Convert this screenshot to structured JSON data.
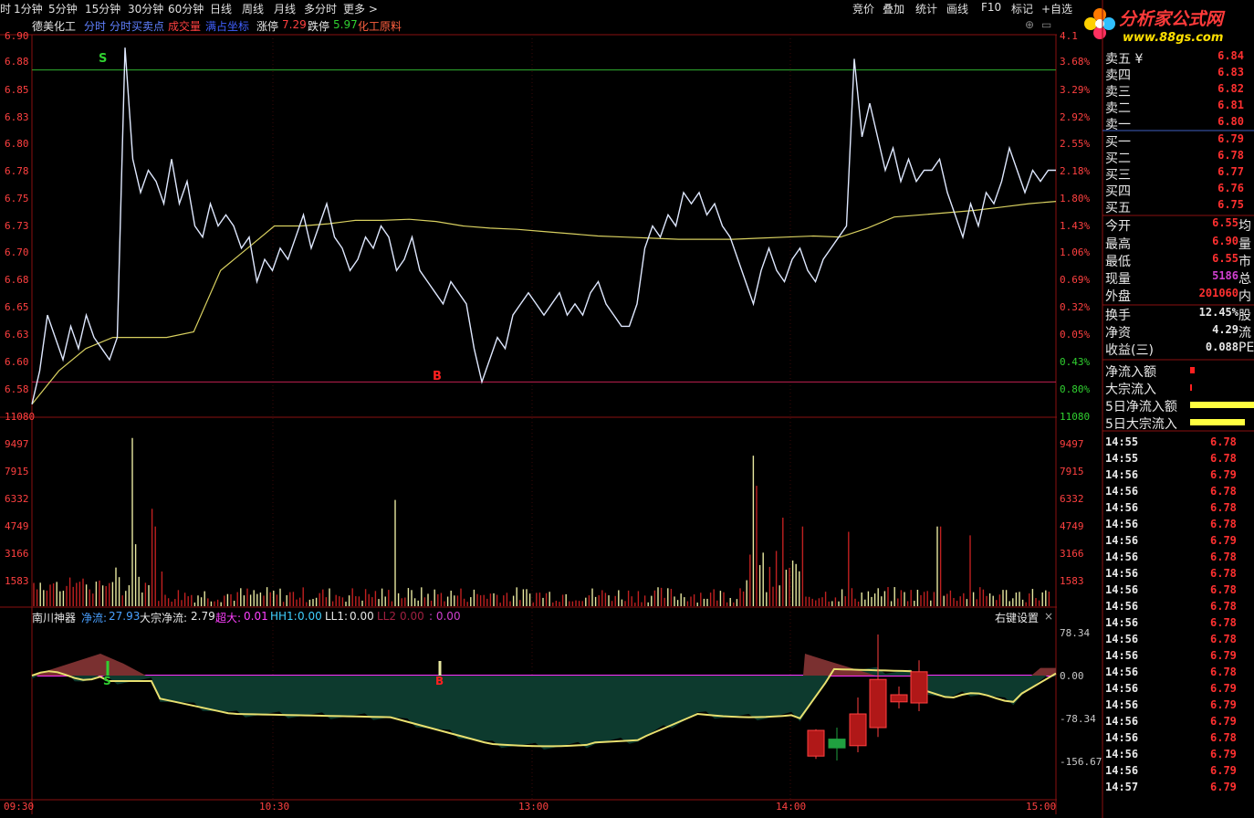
{
  "topbar": {
    "periods": [
      "1分钟",
      "5分钟",
      "15分钟",
      "30分钟",
      "60分钟",
      "日线",
      "周线",
      "月线",
      "多分时",
      "更多 >"
    ],
    "right_tools": [
      "竞价",
      "叠加",
      "统计",
      "画线",
      "F10",
      "标记",
      "+自选"
    ],
    "leading_char": "时"
  },
  "logo": {
    "text": "分析家公式网",
    "url": "www.88gs.com"
  },
  "chart_header": {
    "stock_name": "德美化工",
    "items": [
      "分时",
      "分时买卖点",
      "成交量",
      "满占坐标"
    ],
    "limit_up_label": "涨停",
    "limit_up": "7.29",
    "limit_down_label": "跌停",
    "limit_down": "5.97",
    "sector": "化工原料"
  },
  "price_axis": {
    "left": [
      "6.90",
      "6.88",
      "6.85",
      "6.83",
      "6.80",
      "6.78",
      "6.75",
      "6.73",
      "6.70",
      "6.68",
      "6.65",
      "6.63",
      "6.60",
      "6.58"
    ],
    "right": [
      "4.1",
      "3.68%",
      "3.29%",
      "2.92%",
      "2.55%",
      "2.18%",
      "1.80%",
      "1.43%",
      "1.06%",
      "0.69%",
      "0.32%",
      "0.05%",
      "0.43%",
      "0.80%"
    ]
  },
  "volume_axis": [
    "11080",
    "9497",
    "7915",
    "6332",
    "4749",
    "3166",
    "1583"
  ],
  "time_axis": [
    "09:30",
    "10:30",
    "13:00",
    "14:00",
    "15:00"
  ],
  "indicator": {
    "name": "南川神器",
    "jl_label": "净流:",
    "jl": "27.93",
    "dz_label": "大宗净流:",
    "dz": "2.79",
    "cd_label": "超大:",
    "cd": "0.01",
    "hh_label": "HH1:",
    "hh": "0.00",
    "ll1_label": "LL1:",
    "ll1": "0.00",
    "ll2_label": "LL2",
    "ll2": "0.00",
    "extra": ": 0.00",
    "settings": "右键设置",
    "close": "×",
    "axis": [
      "78.34",
      "0.00",
      "-78.34",
      "-156.67"
    ]
  },
  "orderbook": {
    "sell": [
      {
        "label": "卖五 ¥",
        "price": "6.84"
      },
      {
        "label": "卖四",
        "price": "6.83"
      },
      {
        "label": "卖三",
        "price": "6.82"
      },
      {
        "label": "卖二",
        "price": "6.81"
      },
      {
        "label": "卖一",
        "price": "6.80"
      }
    ],
    "buy": [
      {
        "label": "买一",
        "price": "6.79"
      },
      {
        "label": "买二",
        "price": "6.78"
      },
      {
        "label": "买三",
        "price": "6.77"
      },
      {
        "label": "买四",
        "price": "6.76"
      },
      {
        "label": "买五",
        "price": "6.75"
      }
    ]
  },
  "stats": [
    {
      "label": "今开",
      "value": "6.55",
      "ext": "均",
      "color": "#ff3030"
    },
    {
      "label": "最高",
      "value": "6.90",
      "ext": "量",
      "color": "#ff3030"
    },
    {
      "label": "最低",
      "value": "6.55",
      "ext": "市",
      "color": "#ff3030"
    },
    {
      "label": "现量",
      "value": "5186",
      "ext": "总",
      "color": "#d040d0"
    },
    {
      "label": "外盘",
      "value": "201060",
      "ext": "内",
      "color": "#ff3030"
    },
    {
      "label": "换手",
      "value": "12.45%",
      "ext": "股",
      "color": "#e8e8e8"
    },
    {
      "label": "净资",
      "value": "4.29",
      "ext": "流",
      "color": "#e8e8e8"
    },
    {
      "label": "收益(三)",
      "value": "0.088",
      "ext": "PE",
      "color": "#e8e8e8"
    }
  ],
  "flows": [
    {
      "label": "净流入额"
    },
    {
      "label": "大宗流入"
    },
    {
      "label": "5日净流入额"
    },
    {
      "label": "5日大宗流入"
    }
  ],
  "ticks": [
    {
      "time": "14:55",
      "price": "6.78"
    },
    {
      "time": "14:55",
      "price": "6.78"
    },
    {
      "time": "14:56",
      "price": "6.79"
    },
    {
      "time": "14:56",
      "price": "6.78"
    },
    {
      "time": "14:56",
      "price": "6.78"
    },
    {
      "time": "14:56",
      "price": "6.78"
    },
    {
      "time": "14:56",
      "price": "6.79"
    },
    {
      "time": "14:56",
      "price": "6.78"
    },
    {
      "time": "14:56",
      "price": "6.78"
    },
    {
      "time": "14:56",
      "price": "6.78"
    },
    {
      "time": "14:56",
      "price": "6.78"
    },
    {
      "time": "14:56",
      "price": "6.78"
    },
    {
      "time": "14:56",
      "price": "6.78"
    },
    {
      "time": "14:56",
      "price": "6.79"
    },
    {
      "time": "14:56",
      "price": "6.78"
    },
    {
      "time": "14:56",
      "price": "6.79"
    },
    {
      "time": "14:56",
      "price": "6.79"
    },
    {
      "time": "14:56",
      "price": "6.79"
    },
    {
      "time": "14:56",
      "price": "6.78"
    },
    {
      "time": "14:56",
      "price": "6.79"
    },
    {
      "time": "14:56",
      "price": "6.79"
    },
    {
      "time": "14:57",
      "price": "6.79"
    }
  ],
  "markers": {
    "sell": "S",
    "buy": "B",
    "ind_sell": "S",
    "ind_buy": "B"
  },
  "chart_data": {
    "type": "line",
    "price_series": [
      6.58,
      6.61,
      6.66,
      6.64,
      6.62,
      6.65,
      6.63,
      6.66,
      6.64,
      6.63,
      6.62,
      6.64,
      6.9,
      6.8,
      6.77,
      6.79,
      6.78,
      6.76,
      6.8,
      6.76,
      6.78,
      6.74,
      6.73,
      6.76,
      6.74,
      6.75,
      6.74,
      6.72,
      6.73,
      6.69,
      6.71,
      6.7,
      6.72,
      6.71,
      6.73,
      6.75,
      6.72,
      6.74,
      6.76,
      6.73,
      6.72,
      6.7,
      6.71,
      6.73,
      6.72,
      6.74,
      6.73,
      6.7,
      6.71,
      6.73,
      6.7,
      6.69,
      6.68,
      6.67,
      6.69,
      6.68,
      6.67,
      6.63,
      6.6,
      6.62,
      6.64,
      6.63,
      6.66,
      6.67,
      6.68,
      6.67,
      6.66,
      6.67,
      6.68,
      6.66,
      6.67,
      6.66,
      6.68,
      6.69,
      6.67,
      6.66,
      6.65,
      6.65,
      6.67,
      6.72,
      6.74,
      6.73,
      6.75,
      6.74,
      6.77,
      6.76,
      6.77,
      6.75,
      6.76,
      6.74,
      6.73,
      6.71,
      6.69,
      6.67,
      6.7,
      6.72,
      6.7,
      6.69,
      6.71,
      6.72,
      6.7,
      6.69,
      6.71,
      6.72,
      6.73,
      6.74,
      6.89,
      6.82,
      6.85,
      6.82,
      6.79,
      6.81,
      6.78,
      6.8,
      6.78,
      6.79,
      6.79,
      6.8,
      6.77,
      6.75,
      6.73,
      6.76,
      6.74,
      6.77,
      6.76,
      6.78,
      6.81,
      6.79,
      6.77,
      6.79,
      6.78,
      6.79,
      6.79
    ],
    "avg_series": [
      6.58,
      6.61,
      6.63,
      6.64,
      6.64,
      6.64,
      6.645,
      6.7,
      6.72,
      6.74,
      6.74,
      6.742,
      6.745,
      6.745,
      6.746,
      6.744,
      6.74,
      6.738,
      6.737,
      6.735,
      6.733,
      6.731,
      6.73,
      6.729,
      6.728,
      6.728,
      6.728,
      6.729,
      6.73,
      6.731,
      6.73,
      6.738,
      6.748,
      6.75,
      6.752,
      6.754,
      6.757,
      6.76,
      6.762
    ],
    "ylim": [
      6.57,
      6.91
    ],
    "limit_up_line": 6.88,
    "limit_down_line": 6.6,
    "volume_colors": [
      "red",
      "white"
    ],
    "net_flow_range": [
      -156.67,
      78.34
    ]
  }
}
